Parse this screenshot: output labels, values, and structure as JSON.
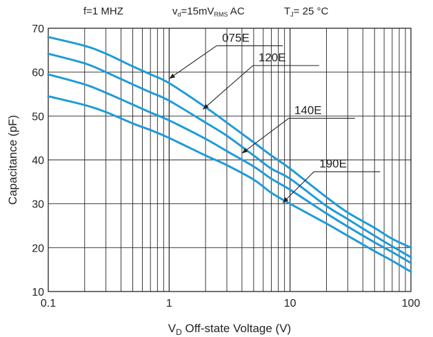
{
  "conditions": {
    "frequency": "f=1 MHZ",
    "voltage_main": "v",
    "voltage_sub_d": "d",
    "voltage_value": "=15mV",
    "voltage_sub_rms": "RMS",
    "voltage_ac": " AC",
    "temp_main": "T",
    "temp_sub": "J",
    "temp_value": "= 25 °C"
  },
  "chart_data": {
    "type": "line",
    "title": "",
    "xlabel_main": "V",
    "xlabel_sub": "D",
    "xlabel_rest": " Off-state Voltage (V)",
    "ylabel": "Capacitance (pF)",
    "x_scale": "log",
    "xlim": [
      0.1,
      100
    ],
    "ylim": [
      10,
      70
    ],
    "x_ticks": [
      0.1,
      1,
      10,
      100
    ],
    "x_tick_labels": [
      "0.1",
      "1",
      "10",
      "100"
    ],
    "y_ticks": [
      10,
      20,
      30,
      40,
      50,
      60,
      70
    ],
    "y_tick_labels": [
      "10",
      "20",
      "30",
      "40",
      "50",
      "60",
      "70"
    ],
    "grid": true,
    "line_color": "#1e9bd7",
    "series": [
      {
        "name": "075E",
        "label_x": 2.6,
        "label_y": 66,
        "arrow_to": [
          1.0,
          58.5
        ],
        "points": [
          [
            0.1,
            68
          ],
          [
            0.2,
            66
          ],
          [
            0.3,
            64.2
          ],
          [
            0.5,
            61.3
          ],
          [
            0.7,
            59.5
          ],
          [
            1,
            57.5
          ],
          [
            2,
            52
          ],
          [
            3,
            48.5
          ],
          [
            5,
            44
          ],
          [
            7,
            41
          ],
          [
            10,
            38
          ],
          [
            20,
            31.5
          ],
          [
            30,
            28
          ],
          [
            50,
            24.5
          ],
          [
            70,
            22
          ],
          [
            100,
            20
          ]
        ]
      },
      {
        "name": "120E",
        "label_x": 5.2,
        "label_y": 61.5,
        "arrow_to": [
          1.9,
          51.5
        ],
        "points": [
          [
            0.1,
            64.2
          ],
          [
            0.2,
            62
          ],
          [
            0.3,
            60
          ],
          [
            0.5,
            57.2
          ],
          [
            0.7,
            55.4
          ],
          [
            1,
            53.5
          ],
          [
            2,
            48.5
          ],
          [
            3,
            45.5
          ],
          [
            5,
            41
          ],
          [
            7,
            38
          ],
          [
            10,
            35.7
          ],
          [
            20,
            29.5
          ],
          [
            30,
            26.5
          ],
          [
            50,
            22.7
          ],
          [
            70,
            20.3
          ],
          [
            100,
            17.8
          ]
        ]
      },
      {
        "name": "140E",
        "label_x": 10.3,
        "label_y": 49.5,
        "arrow_to": [
          4.0,
          41.5
        ],
        "points": [
          [
            0.1,
            59.5
          ],
          [
            0.2,
            57.2
          ],
          [
            0.3,
            55.3
          ],
          [
            0.5,
            52.6
          ],
          [
            0.7,
            50.8
          ],
          [
            1,
            49
          ],
          [
            2,
            44.8
          ],
          [
            3,
            42
          ],
          [
            5,
            38.5
          ],
          [
            7,
            35.7
          ],
          [
            10,
            33.2
          ],
          [
            20,
            27.8
          ],
          [
            30,
            24.8
          ],
          [
            50,
            21.2
          ],
          [
            70,
            19
          ],
          [
            100,
            16.5
          ]
        ]
      },
      {
        "name": "190E",
        "label_x": 16.6,
        "label_y": 37.3,
        "arrow_to": [
          8.7,
          30.2
        ],
        "points": [
          [
            0.1,
            54.5
          ],
          [
            0.2,
            52.5
          ],
          [
            0.3,
            50.9
          ],
          [
            0.5,
            48.3
          ],
          [
            0.7,
            46.8
          ],
          [
            1,
            45
          ],
          [
            2,
            41
          ],
          [
            3,
            38.8
          ],
          [
            5,
            35.5
          ],
          [
            7,
            32.5
          ],
          [
            10,
            30
          ],
          [
            20,
            25.5
          ],
          [
            30,
            22.7
          ],
          [
            50,
            19.2
          ],
          [
            70,
            17
          ],
          [
            100,
            14.5
          ]
        ]
      }
    ]
  }
}
